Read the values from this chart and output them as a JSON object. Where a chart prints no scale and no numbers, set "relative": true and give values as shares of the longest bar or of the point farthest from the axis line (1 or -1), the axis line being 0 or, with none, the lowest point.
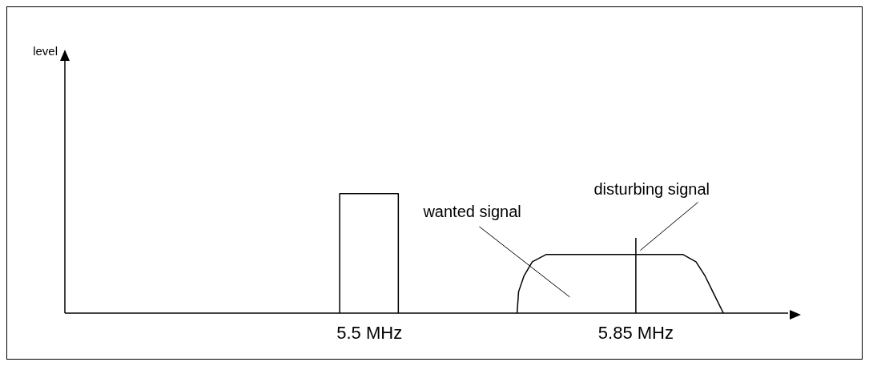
{
  "chart_data": {
    "type": "line",
    "relative": true,
    "annotations": [
      "level"
    ],
    "xlim": [
      5.1,
      6.05
    ],
    "xticks": [
      {
        "value": 5.5,
        "label": "5.5 MHz"
      },
      {
        "value": 5.85,
        "label": "5.85 MHz"
      }
    ],
    "line_style": "solid",
    "series": [
      {
        "color": "#000000",
        "x": [
          5.461,
          5.461,
          5.538,
          5.538
        ],
        "values": [
          0,
          1,
          1,
          0
        ]
      },
      {
        "name": "wanted signal",
        "color": "#000000",
        "x": [
          5.694,
          5.696,
          5.703,
          5.714,
          5.732,
          5.912,
          5.929,
          5.941,
          5.951,
          5.965
        ],
        "values": [
          0,
          0.18,
          0.31,
          0.43,
          0.49,
          0.49,
          0.43,
          0.31,
          0.18,
          0
        ]
      },
      {
        "name": "disturbing signal",
        "color": "#000000",
        "x": [
          5.85,
          5.85
        ],
        "values": [
          0,
          0.63
        ]
      }
    ]
  }
}
